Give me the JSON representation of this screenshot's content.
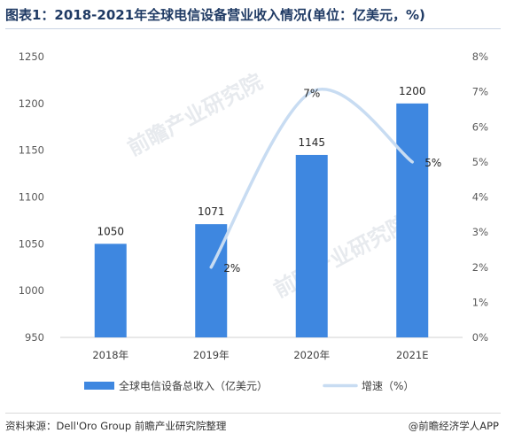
{
  "title": "图表1：2018-2021年全球电信设备营业收入情况(单位：亿美元，%)",
  "source": "资料来源：Dell'Oro Group 前瞻产业研究院整理",
  "brand": "@前瞻经济学人APP",
  "watermark": "前瞻产业研究院",
  "colors": {
    "bar": "#3e87e0",
    "line": "#c8dcf2",
    "title": "#1f3a64"
  },
  "chart_data": {
    "type": "bar",
    "categories": [
      "2018年",
      "2019年",
      "2020年",
      "2021E"
    ],
    "series": [
      {
        "name": "全球电信设备总收入（亿美元）",
        "type": "bar",
        "axis": "left",
        "values": [
          1050,
          1071,
          1145,
          1200
        ],
        "labels": [
          "1050",
          "1071",
          "1145",
          "1200"
        ]
      },
      {
        "name": "增速（%）",
        "type": "line",
        "axis": "right",
        "smooth": true,
        "values": [
          null,
          2,
          7,
          5
        ],
        "labels": [
          "",
          "2%",
          "7%",
          "5%"
        ]
      }
    ],
    "y_left": {
      "min": 950,
      "max": 1250,
      "step": 50,
      "ticks": [
        "950",
        "1000",
        "1050",
        "1100",
        "1150",
        "1200",
        "1250"
      ]
    },
    "y_right": {
      "min": 0,
      "max": 8,
      "step": 1,
      "ticks": [
        "0%",
        "1%",
        "2%",
        "3%",
        "4%",
        "5%",
        "6%",
        "7%",
        "8%"
      ]
    },
    "grid": false,
    "legend_position": "bottom"
  }
}
